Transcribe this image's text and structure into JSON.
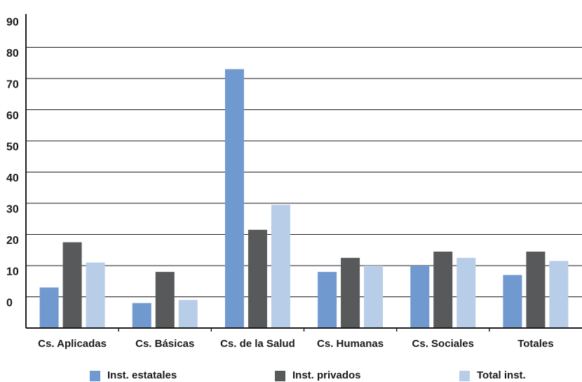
{
  "chart_data": {
    "type": "bar",
    "title": "",
    "xlabel": "",
    "ylabel": "",
    "y_tick_labels": [
      "0",
      "10",
      "20",
      "30",
      "40",
      "50",
      "60",
      "70",
      "80",
      "90"
    ],
    "ylim": [
      -10,
      90
    ],
    "grid": true,
    "legend_position": "bottom",
    "categories": [
      "Cs. Aplicadas",
      "Cs. Básicas",
      "Cs. de la Salud",
      "Cs. Humanas",
      "Cs. Sociales",
      "Totales"
    ],
    "series": [
      {
        "name": "Inst. estatales",
        "color": "#7099cf",
        "values": [
          3,
          -2,
          73,
          8,
          10,
          7
        ]
      },
      {
        "name": "Inst. privados",
        "color": "#58595b",
        "values": [
          17.5,
          8,
          21.5,
          12.5,
          14.5,
          14.5
        ]
      },
      {
        "name": "Total inst.",
        "color": "#b8cde8",
        "values": [
          11,
          -1,
          29.5,
          10,
          12.5,
          11.5
        ]
      }
    ]
  }
}
